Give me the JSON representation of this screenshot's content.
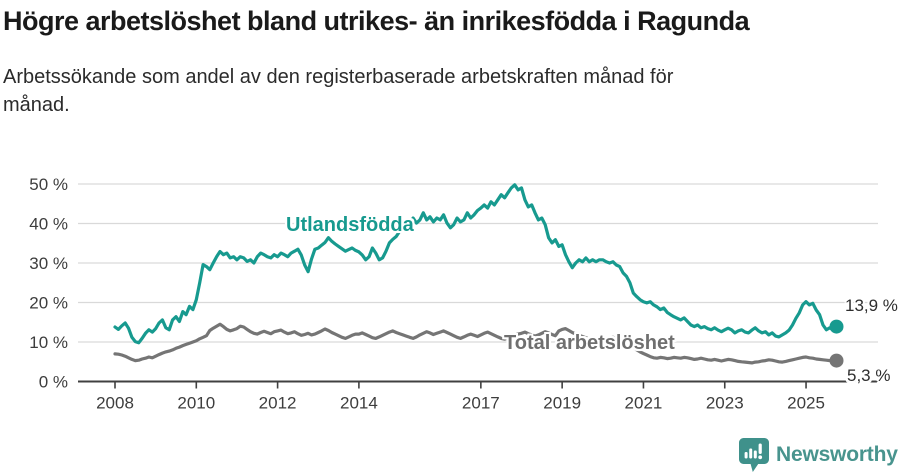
{
  "header": {
    "title": "Högre arbetslöshet bland utrikes- än inrikesfödda i Ragunda",
    "subtitle": "Arbetssökande som andel av den registerbaserade arbetskraften månad för\nmånad."
  },
  "chart_data": {
    "type": "line",
    "title": "Högre arbetslöshet bland utrikes- än inrikesfödda i Ragunda",
    "subtitle": "Arbetssökande som andel av den registerbaserade arbetskraften månad för månad.",
    "x_unit": "year-month",
    "x_start": 2008.0,
    "x_step_years": 0.0833,
    "x_end_label_period": "2025-10",
    "ylim": [
      0,
      50
    ],
    "grid": "horizontal",
    "legend_position": "inline-annotations",
    "x_ticks": [
      {
        "label": "2008",
        "year": 2008
      },
      {
        "label": "2010",
        "year": 2010
      },
      {
        "label": "2012",
        "year": 2012
      },
      {
        "label": "2014",
        "year": 2014
      },
      {
        "label": "2017",
        "year": 2017
      },
      {
        "label": "2019",
        "year": 2019
      },
      {
        "label": "2021",
        "year": 2021
      },
      {
        "label": "2023",
        "year": 2023
      },
      {
        "label": "2025",
        "year": 2025
      }
    ],
    "y_ticks": [
      {
        "label": "0 %",
        "value": 0
      },
      {
        "label": "10 %",
        "value": 10
      },
      {
        "label": "20 %",
        "value": 20
      },
      {
        "label": "30 %",
        "value": 30
      },
      {
        "label": "40 %",
        "value": 40
      },
      {
        "label": "50 %",
        "value": 50
      }
    ],
    "series": [
      {
        "name": "Utlandsfödda",
        "color": "#179a8f",
        "end_label": "13,9 %",
        "end_value": 13.9,
        "values": [
          13.8,
          13.2,
          14.1,
          14.8,
          13.5,
          11.2,
          10.1,
          9.8,
          10.9,
          12.2,
          13.1,
          12.5,
          13.4,
          14.8,
          15.6,
          13.6,
          13.1,
          15.6,
          16.4,
          15.2,
          17.7,
          16.9,
          19.0,
          18.2,
          20.7,
          25.0,
          29.6,
          29.1,
          28.3,
          30.0,
          31.6,
          32.9,
          32.1,
          32.5,
          31.3,
          31.6,
          30.8,
          31.6,
          31.3,
          30.4,
          30.8,
          30.0,
          31.6,
          32.5,
          32.1,
          31.6,
          31.3,
          32.1,
          31.6,
          32.5,
          32.1,
          31.6,
          32.5,
          33.0,
          33.5,
          32.0,
          29.5,
          27.8,
          31.0,
          33.5,
          33.8,
          34.5,
          35.2,
          36.4,
          35.5,
          34.8,
          34.2,
          33.6,
          33.0,
          33.4,
          33.8,
          33.2,
          32.8,
          32.0,
          30.8,
          31.6,
          33.8,
          32.5,
          30.8,
          31.3,
          33.0,
          35.1,
          36.0,
          36.7,
          38.0,
          39.2,
          40.5,
          39.7,
          41.4,
          40.1,
          40.9,
          42.7,
          40.9,
          41.7,
          40.4,
          41.4,
          40.9,
          42.2,
          40.1,
          38.9,
          39.7,
          41.4,
          40.4,
          40.9,
          42.7,
          41.4,
          42.2,
          43.3,
          43.9,
          44.7,
          43.9,
          45.5,
          44.7,
          46.0,
          47.3,
          46.5,
          47.8,
          49.0,
          49.8,
          48.5,
          49.0,
          46.0,
          44.2,
          44.7,
          42.7,
          40.9,
          41.4,
          39.7,
          36.4,
          35.1,
          35.9,
          34.2,
          34.6,
          32.1,
          30.3,
          28.8,
          30.0,
          30.8,
          30.3,
          31.3,
          30.3,
          30.8,
          30.3,
          30.8,
          30.8,
          30.3,
          30.0,
          30.3,
          29.5,
          29.1,
          27.5,
          26.6,
          25.0,
          22.4,
          21.5,
          20.7,
          20.2,
          19.9,
          20.2,
          19.4,
          18.9,
          18.2,
          18.6,
          17.5,
          16.9,
          16.4,
          16.0,
          15.6,
          16.1,
          15.2,
          14.3,
          13.9,
          14.3,
          13.6,
          13.9,
          13.4,
          13.1,
          13.6,
          13.0,
          12.6,
          13.1,
          13.5,
          13.1,
          12.3,
          12.8,
          13.1,
          12.5,
          12.3,
          13.0,
          13.6,
          12.8,
          12.3,
          12.6,
          11.8,
          12.3,
          11.5,
          11.3,
          11.8,
          12.3,
          13.0,
          14.3,
          16.0,
          17.4,
          19.4,
          20.2,
          19.4,
          19.8,
          18.1,
          16.9,
          14.3,
          13.1,
          13.6,
          13.1,
          13.9
        ]
      },
      {
        "name": "Total arbetslöshet",
        "color": "#757575",
        "end_label": "5,3 %",
        "end_value": 5.3,
        "values": [
          7.0,
          6.9,
          6.7,
          6.4,
          6.0,
          5.6,
          5.3,
          5.4,
          5.7,
          5.9,
          6.2,
          6.0,
          6.4,
          6.8,
          7.2,
          7.5,
          7.7,
          8.0,
          8.4,
          8.7,
          9.1,
          9.4,
          9.7,
          10.0,
          10.3,
          10.8,
          11.2,
          11.6,
          12.9,
          13.5,
          14.0,
          14.5,
          13.9,
          13.2,
          12.8,
          13.1,
          13.4,
          14.0,
          13.8,
          13.2,
          12.6,
          12.2,
          12.0,
          12.4,
          12.7,
          12.4,
          12.1,
          12.6,
          12.8,
          13.0,
          12.5,
          12.1,
          12.3,
          12.6,
          12.1,
          11.7,
          11.9,
          12.2,
          11.8,
          12.0,
          12.4,
          12.8,
          13.3,
          12.9,
          12.4,
          12.0,
          11.6,
          11.2,
          10.9,
          11.3,
          11.7,
          12.0,
          12.0,
          12.3,
          11.9,
          11.5,
          11.1,
          10.9,
          11.3,
          11.7,
          12.1,
          12.5,
          12.8,
          12.4,
          12.1,
          11.8,
          11.5,
          11.2,
          10.9,
          11.3,
          11.8,
          12.2,
          12.6,
          12.3,
          11.9,
          12.2,
          12.5,
          12.8,
          12.4,
          12.0,
          11.6,
          11.2,
          10.9,
          11.3,
          11.7,
          12.0,
          11.7,
          11.4,
          11.8,
          12.2,
          12.5,
          12.1,
          11.7,
          11.3,
          10.9,
          10.7,
          11.0,
          11.4,
          11.8,
          12.0,
          12.2,
          12.5,
          12.1,
          11.8,
          11.5,
          11.8,
          12.2,
          12.6,
          12.3,
          11.9,
          11.6,
          12.8,
          13.2,
          13.4,
          12.9,
          12.4,
          12.0,
          11.7,
          11.4,
          11.1,
          10.8,
          10.6,
          10.4,
          10.2,
          10.4,
          10.7,
          11.0,
          11.2,
          10.9,
          10.5,
          10.0,
          9.5,
          9.0,
          8.5,
          8.0,
          7.5,
          7.1,
          6.7,
          6.3,
          6.0,
          5.9,
          6.1,
          6.0,
          5.8,
          5.9,
          6.1,
          6.0,
          5.9,
          6.1,
          6.0,
          5.8,
          5.6,
          5.7,
          5.9,
          5.7,
          5.5,
          5.4,
          5.6,
          5.4,
          5.2,
          5.4,
          5.6,
          5.5,
          5.3,
          5.1,
          5.0,
          4.9,
          4.8,
          4.7,
          4.9,
          5.0,
          5.2,
          5.3,
          5.5,
          5.4,
          5.2,
          5.0,
          4.9,
          5.1,
          5.3,
          5.5,
          5.7,
          5.9,
          6.1,
          6.2,
          6.0,
          5.9,
          5.7,
          5.6,
          5.5,
          5.4,
          5.3,
          5.2,
          5.3
        ]
      }
    ]
  },
  "colors": {
    "accent_teal": "#179a8f",
    "series_gray": "#757575",
    "gridline": "#d9d9d9",
    "axis": "#404040",
    "text_dark": "#1a1a1a",
    "logo_teal": "#48948e"
  },
  "footer": {
    "brand": "Newsworthy",
    "icon": "newsworthy-pin-barchart-icon"
  }
}
